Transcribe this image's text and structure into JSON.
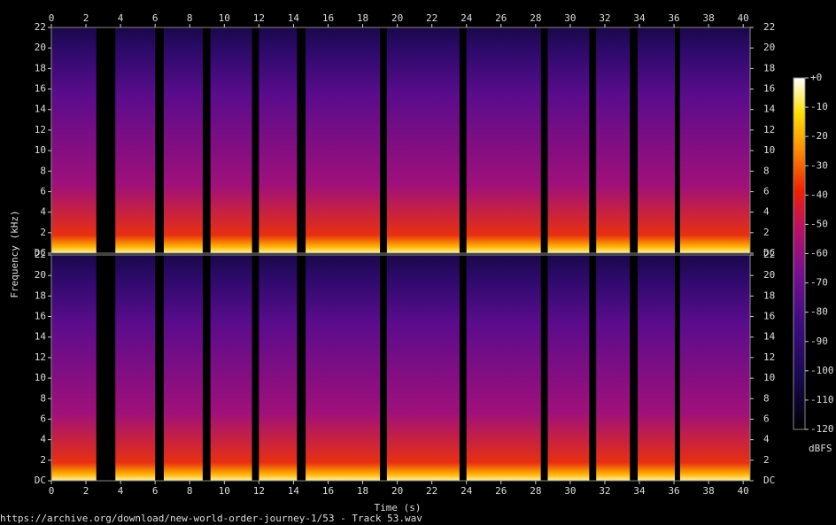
{
  "chart_data": {
    "type": "spectrogram",
    "xlabel": "Time (s)",
    "ylabel": "Frequency (kHz)",
    "footer": "https://archive.org/download/new-world-order-journey-1/53 - Track 53.wav",
    "colorbar_label": "dBFS",
    "xlim": [
      0,
      40.4
    ],
    "xticks": [
      0,
      2,
      4,
      6,
      8,
      10,
      12,
      14,
      16,
      18,
      20,
      22,
      24,
      26,
      28,
      30,
      32,
      34,
      36,
      38,
      40
    ],
    "ylim": [
      0,
      22
    ],
    "yticks": [
      {
        "value": 0,
        "label": "DC"
      },
      2,
      4,
      6,
      8,
      10,
      12,
      14,
      16,
      18,
      20,
      22
    ],
    "clim": [
      -120,
      0
    ],
    "cticks": [
      {
        "value": 0,
        "label": "+0"
      },
      -10,
      -20,
      -30,
      -40,
      -50,
      -60,
      -70,
      -80,
      -90,
      -100,
      -110,
      -120
    ],
    "segments": [
      [
        0,
        2.6
      ],
      [
        3.7,
        6.0
      ],
      [
        6.5,
        8.75
      ],
      [
        9.2,
        11.6
      ],
      [
        12.0,
        14.2
      ],
      [
        14.7,
        19.0
      ],
      [
        19.4,
        23.6
      ],
      [
        24.0,
        28.3
      ],
      [
        28.7,
        31.1
      ],
      [
        31.5,
        33.45
      ],
      [
        33.9,
        36.05
      ],
      [
        36.35,
        40.4
      ]
    ]
  }
}
